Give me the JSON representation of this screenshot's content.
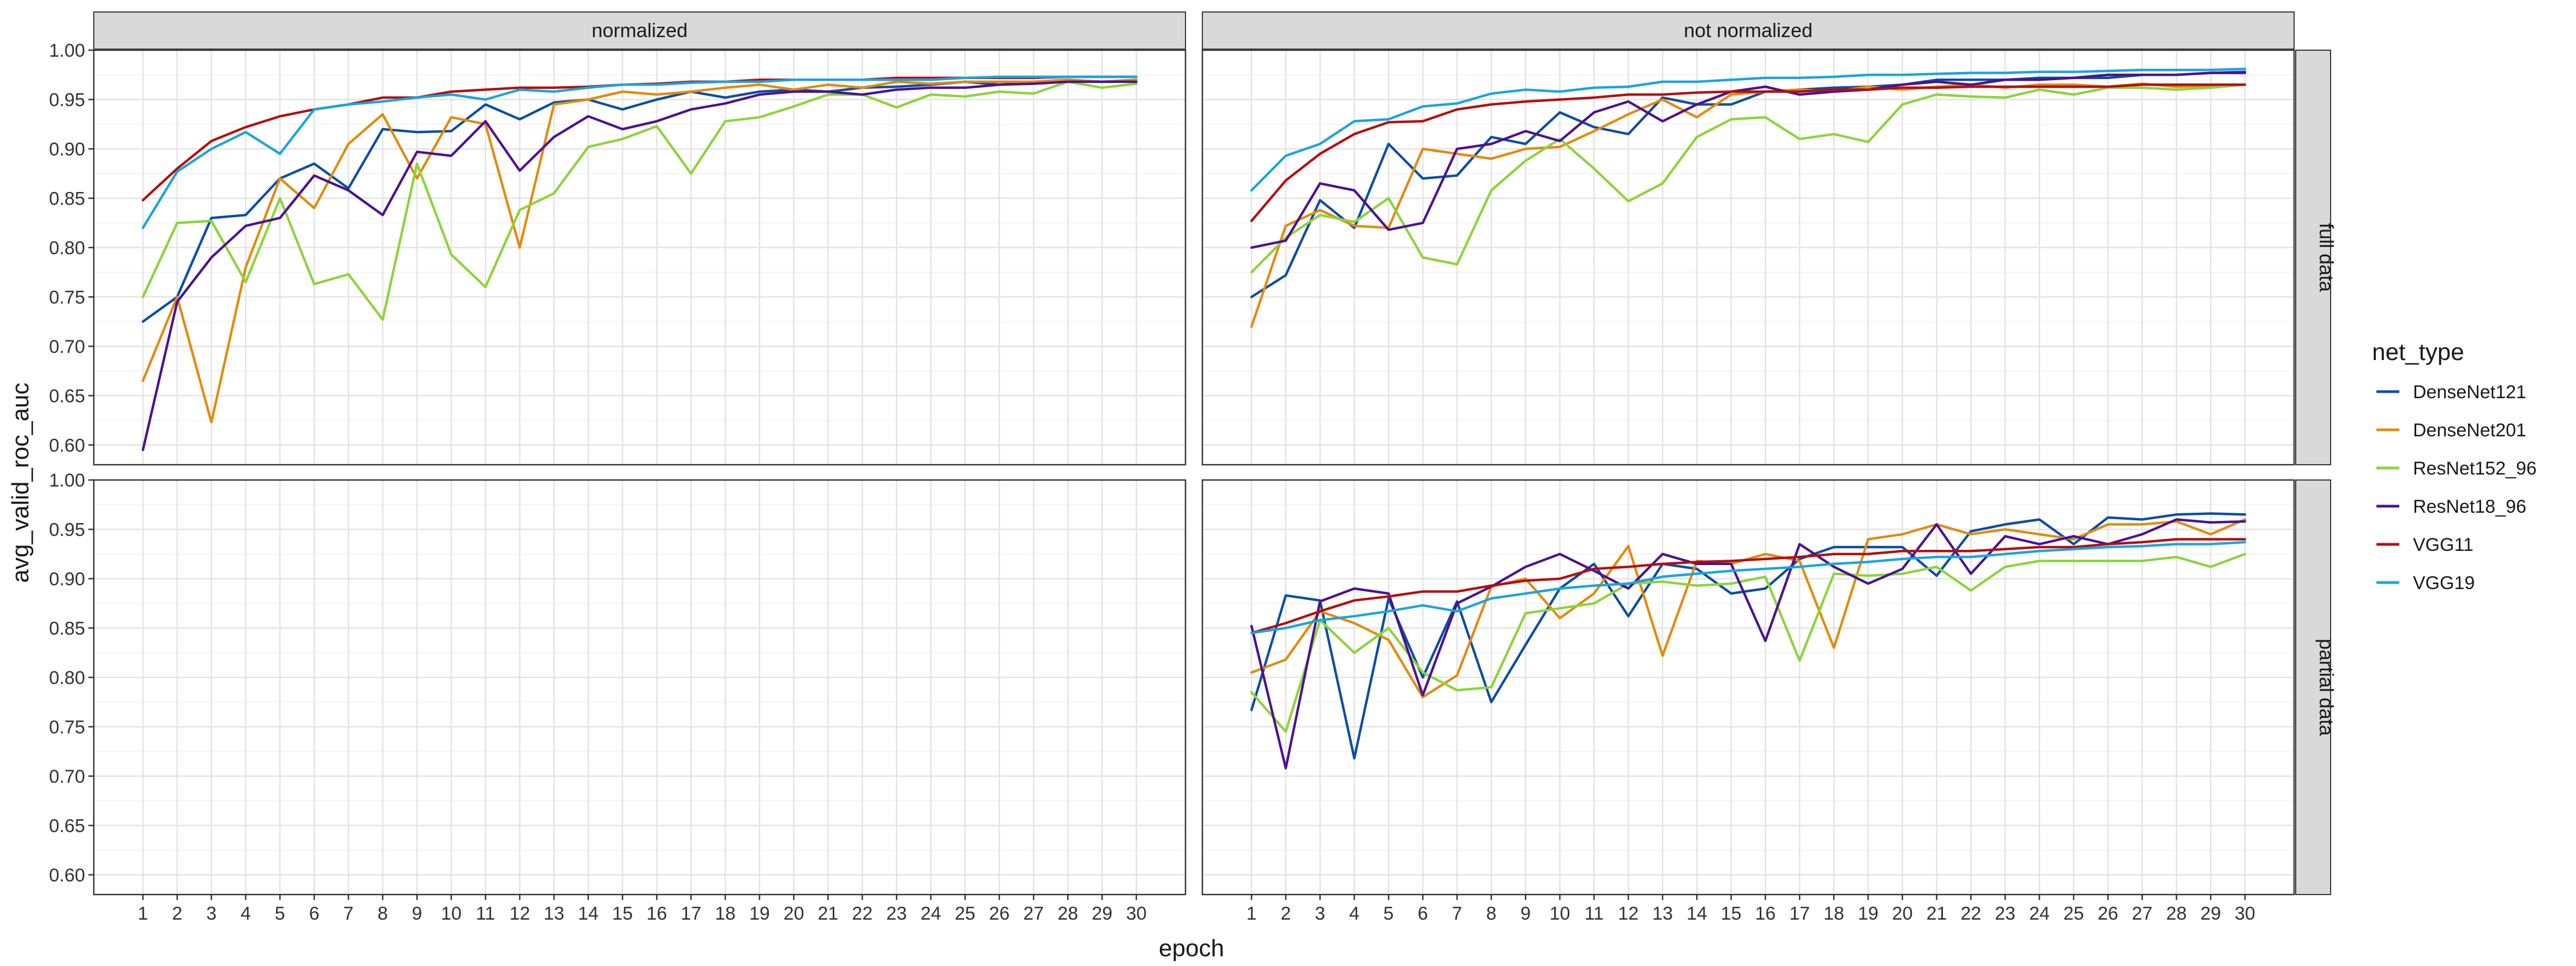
{
  "chart_data": {
    "type": "line",
    "xlabel": "epoch",
    "ylabel": "avg_valid_roc_auc",
    "legend_title": "net_type",
    "legend_position": "right",
    "grid": true,
    "col_facets": [
      "normalized",
      "not normalized"
    ],
    "row_facets": [
      "full data",
      "partial data"
    ],
    "xlim": [
      1,
      30
    ],
    "ylim": [
      0.58,
      1.0
    ],
    "x_ticks": [
      1,
      2,
      3,
      4,
      5,
      6,
      7,
      8,
      9,
      10,
      11,
      12,
      13,
      14,
      15,
      16,
      17,
      18,
      19,
      20,
      21,
      22,
      23,
      24,
      25,
      26,
      27,
      28,
      29,
      30
    ],
    "y_ticks": [
      0.6,
      0.65,
      0.7,
      0.75,
      0.8,
      0.85,
      0.9,
      0.95,
      1.0
    ],
    "y_tick_labels": [
      "0.60",
      "0.65",
      "0.70",
      "0.75",
      "0.80",
      "0.85",
      "0.90",
      "0.95",
      "1.00"
    ],
    "x": [
      1,
      2,
      3,
      4,
      5,
      6,
      7,
      8,
      9,
      10,
      11,
      12,
      13,
      14,
      15,
      16,
      17,
      18,
      19,
      20,
      21,
      22,
      23,
      24,
      25,
      26,
      27,
      28,
      29,
      30
    ],
    "series_meta": [
      {
        "name": "DenseNet121",
        "color": "#0a4ea3"
      },
      {
        "name": "DenseNet201",
        "color": "#e48a0c"
      },
      {
        "name": "ResNet152_96",
        "color": "#8cd43a"
      },
      {
        "name": "ResNet18_96",
        "color": "#4b1291"
      },
      {
        "name": "VGG11",
        "color": "#b30f0f"
      },
      {
        "name": "VGG19",
        "color": "#1aa4e0"
      }
    ],
    "panels": [
      {
        "row": "full data",
        "col": "normalized",
        "series": [
          {
            "name": "DenseNet121",
            "values": [
              0.725,
              0.75,
              0.83,
              0.833,
              0.87,
              0.885,
              0.86,
              0.92,
              0.917,
              0.918,
              0.945,
              0.93,
              0.947,
              0.95,
              0.94,
              0.95,
              0.958,
              0.952,
              0.958,
              0.96,
              0.958,
              0.962,
              0.963,
              0.965,
              0.968,
              0.965,
              0.968,
              0.97,
              0.968,
              0.97
            ]
          },
          {
            "name": "DenseNet201",
            "values": [
              0.665,
              0.75,
              0.623,
              0.78,
              0.87,
              0.84,
              0.905,
              0.935,
              0.87,
              0.932,
              0.925,
              0.8,
              0.945,
              0.95,
              0.958,
              0.955,
              0.958,
              0.962,
              0.965,
              0.96,
              0.965,
              0.962,
              0.968,
              0.966,
              0.968,
              0.968,
              0.968,
              0.97,
              0.968,
              0.97
            ]
          },
          {
            "name": "ResNet152_96",
            "values": [
              0.75,
              0.825,
              0.827,
              0.765,
              0.85,
              0.763,
              0.773,
              0.727,
              0.885,
              0.793,
              0.76,
              0.838,
              0.855,
              0.902,
              0.91,
              0.923,
              0.875,
              0.928,
              0.932,
              0.943,
              0.955,
              0.955,
              0.942,
              0.955,
              0.953,
              0.958,
              0.956,
              0.968,
              0.962,
              0.966
            ]
          },
          {
            "name": "ResNet18_96",
            "values": [
              0.595,
              0.745,
              0.79,
              0.822,
              0.83,
              0.873,
              0.858,
              0.833,
              0.897,
              0.893,
              0.928,
              0.878,
              0.912,
              0.933,
              0.92,
              0.928,
              0.94,
              0.946,
              0.955,
              0.958,
              0.958,
              0.955,
              0.96,
              0.962,
              0.962,
              0.965,
              0.966,
              0.968,
              0.968,
              0.968
            ]
          },
          {
            "name": "VGG11",
            "values": [
              0.848,
              0.88,
              0.908,
              0.922,
              0.933,
              0.94,
              0.945,
              0.952,
              0.952,
              0.958,
              0.96,
              0.962,
              0.962,
              0.963,
              0.965,
              0.966,
              0.968,
              0.968,
              0.97,
              0.97,
              0.97,
              0.97,
              0.972,
              0.972,
              0.972,
              0.972,
              0.972,
              0.973,
              0.973,
              0.973
            ]
          },
          {
            "name": "VGG19",
            "values": [
              0.82,
              0.877,
              0.9,
              0.917,
              0.895,
              0.94,
              0.945,
              0.948,
              0.952,
              0.955,
              0.95,
              0.96,
              0.958,
              0.962,
              0.965,
              0.965,
              0.967,
              0.968,
              0.968,
              0.97,
              0.97,
              0.97,
              0.97,
              0.97,
              0.972,
              0.973,
              0.973,
              0.973,
              0.973,
              0.973
            ]
          }
        ]
      },
      {
        "row": "full data",
        "col": "not normalized",
        "series": [
          {
            "name": "DenseNet121",
            "values": [
              0.75,
              0.772,
              0.848,
              0.82,
              0.905,
              0.87,
              0.873,
              0.912,
              0.905,
              0.937,
              0.922,
              0.915,
              0.952,
              0.945,
              0.945,
              0.958,
              0.96,
              0.962,
              0.963,
              0.965,
              0.97,
              0.97,
              0.97,
              0.972,
              0.972,
              0.972,
              0.975,
              0.975,
              0.977,
              0.978
            ]
          },
          {
            "name": "DenseNet201",
            "values": [
              0.72,
              0.822,
              0.838,
              0.822,
              0.82,
              0.9,
              0.895,
              0.89,
              0.9,
              0.902,
              0.918,
              0.935,
              0.95,
              0.932,
              0.955,
              0.958,
              0.96,
              0.958,
              0.963,
              0.96,
              0.963,
              0.965,
              0.962,
              0.965,
              0.965,
              0.963,
              0.966,
              0.963,
              0.964,
              0.965
            ]
          },
          {
            "name": "ResNet152_96",
            "values": [
              0.775,
              0.81,
              0.833,
              0.826,
              0.85,
              0.79,
              0.783,
              0.858,
              0.888,
              0.91,
              0.88,
              0.847,
              0.865,
              0.912,
              0.93,
              0.932,
              0.91,
              0.915,
              0.907,
              0.945,
              0.955,
              0.953,
              0.952,
              0.96,
              0.955,
              0.962,
              0.962,
              0.96,
              0.962,
              0.965
            ]
          },
          {
            "name": "ResNet18_96",
            "values": [
              0.8,
              0.807,
              0.865,
              0.858,
              0.818,
              0.825,
              0.9,
              0.905,
              0.918,
              0.908,
              0.937,
              0.948,
              0.928,
              0.945,
              0.958,
              0.963,
              0.955,
              0.958,
              0.96,
              0.965,
              0.968,
              0.965,
              0.97,
              0.97,
              0.972,
              0.975,
              0.975,
              0.975,
              0.977,
              0.977
            ]
          },
          {
            "name": "VGG11",
            "values": [
              0.827,
              0.868,
              0.895,
              0.915,
              0.927,
              0.928,
              0.94,
              0.945,
              0.948,
              0.95,
              0.952,
              0.955,
              0.955,
              0.957,
              0.958,
              0.958,
              0.958,
              0.96,
              0.96,
              0.962,
              0.962,
              0.963,
              0.963,
              0.963,
              0.963,
              0.963,
              0.965,
              0.965,
              0.965,
              0.965
            ]
          },
          {
            "name": "VGG19",
            "values": [
              0.858,
              0.893,
              0.905,
              0.928,
              0.93,
              0.943,
              0.946,
              0.956,
              0.96,
              0.958,
              0.962,
              0.963,
              0.968,
              0.968,
              0.97,
              0.972,
              0.972,
              0.973,
              0.975,
              0.975,
              0.976,
              0.977,
              0.977,
              0.978,
              0.978,
              0.979,
              0.98,
              0.98,
              0.98,
              0.981
            ]
          }
        ]
      },
      {
        "row": "partial data",
        "col": "normalized",
        "series": []
      },
      {
        "row": "partial data",
        "col": "not normalized",
        "series": [
          {
            "name": "DenseNet121",
            "values": [
              0.767,
              0.883,
              0.878,
              0.718,
              0.88,
              0.8,
              0.877,
              0.775,
              0.833,
              0.89,
              0.915,
              0.862,
              0.915,
              0.91,
              0.885,
              0.89,
              0.92,
              0.932,
              0.932,
              0.932,
              0.903,
              0.948,
              0.955,
              0.96,
              0.935,
              0.962,
              0.96,
              0.965,
              0.966,
              0.965
            ]
          },
          {
            "name": "DenseNet201",
            "values": [
              0.805,
              0.818,
              0.867,
              0.855,
              0.838,
              0.78,
              0.802,
              0.892,
              0.9,
              0.86,
              0.885,
              0.933,
              0.822,
              0.918,
              0.915,
              0.925,
              0.918,
              0.83,
              0.94,
              0.945,
              0.955,
              0.945,
              0.95,
              0.945,
              0.94,
              0.955,
              0.955,
              0.958,
              0.945,
              0.96
            ]
          },
          {
            "name": "ResNet152_96",
            "values": [
              0.785,
              0.745,
              0.858,
              0.825,
              0.85,
              0.805,
              0.787,
              0.79,
              0.865,
              0.87,
              0.875,
              0.895,
              0.897,
              0.893,
              0.895,
              0.902,
              0.817,
              0.905,
              0.903,
              0.905,
              0.912,
              0.888,
              0.912,
              0.918,
              0.918,
              0.918,
              0.918,
              0.922,
              0.912,
              0.925
            ]
          },
          {
            "name": "ResNet18_96",
            "values": [
              0.852,
              0.708,
              0.877,
              0.89,
              0.885,
              0.782,
              0.875,
              0.892,
              0.912,
              0.925,
              0.908,
              0.89,
              0.925,
              0.915,
              0.915,
              0.837,
              0.935,
              0.912,
              0.895,
              0.91,
              0.955,
              0.905,
              0.943,
              0.935,
              0.943,
              0.935,
              0.945,
              0.96,
              0.957,
              0.958
            ]
          },
          {
            "name": "VGG11",
            "values": [
              0.845,
              0.855,
              0.867,
              0.878,
              0.882,
              0.887,
              0.887,
              0.893,
              0.898,
              0.9,
              0.91,
              0.912,
              0.915,
              0.917,
              0.918,
              0.92,
              0.922,
              0.925,
              0.925,
              0.928,
              0.928,
              0.928,
              0.93,
              0.932,
              0.932,
              0.935,
              0.937,
              0.94,
              0.94,
              0.94
            ]
          },
          {
            "name": "VGG19",
            "values": [
              0.845,
              0.85,
              0.858,
              0.862,
              0.867,
              0.873,
              0.867,
              0.88,
              0.885,
              0.89,
              0.893,
              0.895,
              0.902,
              0.905,
              0.908,
              0.91,
              0.912,
              0.915,
              0.917,
              0.92,
              0.922,
              0.922,
              0.925,
              0.928,
              0.93,
              0.932,
              0.933,
              0.935,
              0.935,
              0.937
            ]
          }
        ]
      }
    ]
  }
}
